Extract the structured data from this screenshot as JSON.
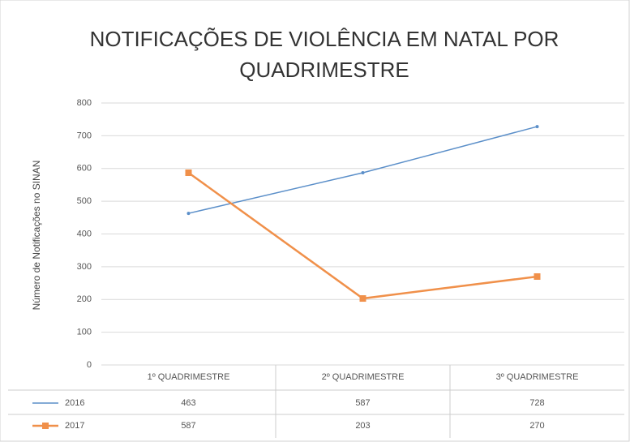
{
  "chart_data": {
    "type": "line",
    "title": "NOTIFICAÇÕES DE VIOLÊNCIA EM NATAL POR QUADRIMESTRE",
    "y_label": "Número de Notificações no SINAN",
    "categories": [
      "1º QUADRIMESTRE",
      "2º QUADRIMESTRE",
      "3º QUADRIMESTRE"
    ],
    "series": [
      {
        "name": "2016",
        "color": "#5b8fc9",
        "marker": false,
        "values": [
          463,
          587,
          728
        ]
      },
      {
        "name": "2017",
        "color": "#f0904a",
        "marker": true,
        "values": [
          587,
          203,
          270
        ]
      }
    ],
    "ylim": [
      0,
      800
    ],
    "yticks": [
      0,
      100,
      200,
      300,
      400,
      500,
      600,
      700,
      800
    ],
    "grid": true
  }
}
